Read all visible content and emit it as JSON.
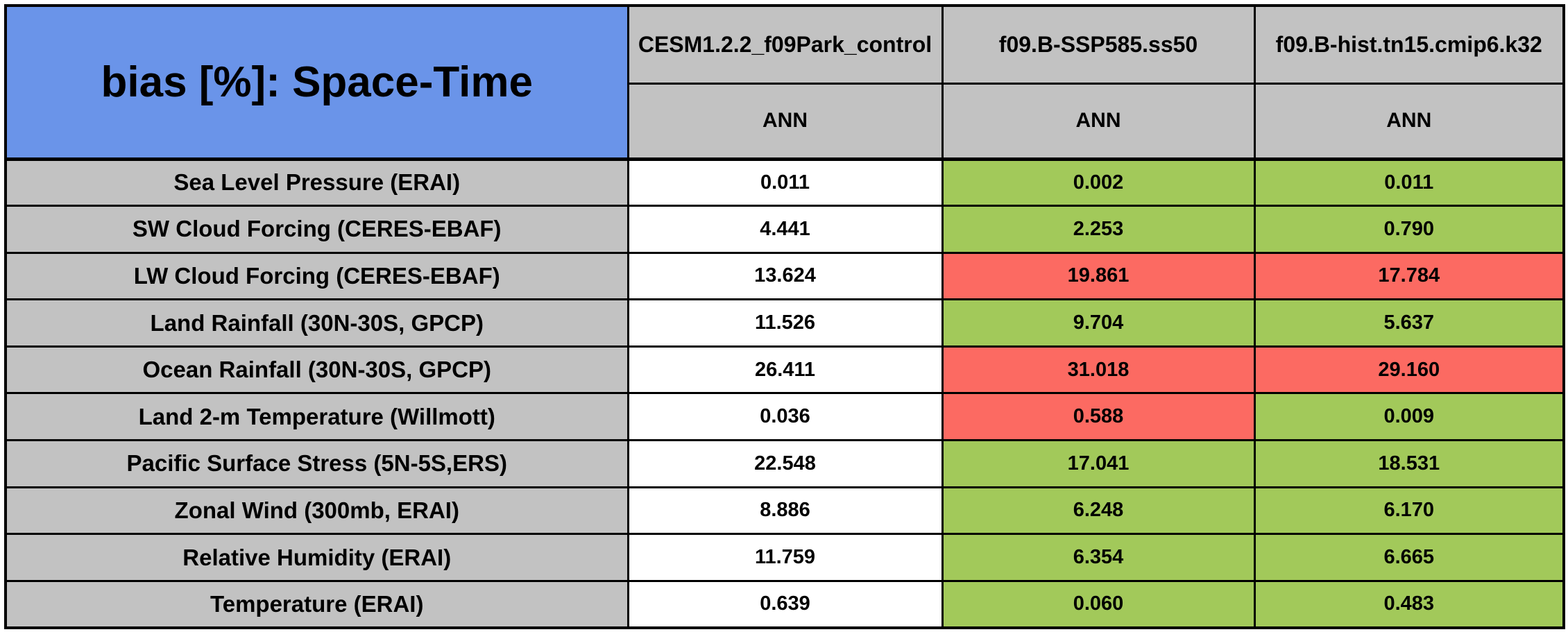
{
  "header": {
    "title": "bias [%]: Space-Time",
    "columns": [
      {
        "model": "CESM1.2.2_f09Park_control",
        "season": "ANN"
      },
      {
        "model": "f09.B-SSP585.ss50",
        "season": "ANN"
      },
      {
        "model": "f09.B-hist.tn15.cmip6.k32",
        "season": "ANN"
      }
    ]
  },
  "rows": [
    {
      "label": "Sea Level Pressure (ERAI)",
      "cells": [
        {
          "value": "0.011",
          "status": "white"
        },
        {
          "value": "0.002",
          "status": "green"
        },
        {
          "value": "0.011",
          "status": "green"
        }
      ]
    },
    {
      "label": "SW Cloud Forcing (CERES-EBAF)",
      "cells": [
        {
          "value": "4.441",
          "status": "white"
        },
        {
          "value": "2.253",
          "status": "green"
        },
        {
          "value": "0.790",
          "status": "green"
        }
      ]
    },
    {
      "label": "LW Cloud Forcing (CERES-EBAF)",
      "cells": [
        {
          "value": "13.624",
          "status": "white"
        },
        {
          "value": "19.861",
          "status": "red"
        },
        {
          "value": "17.784",
          "status": "red"
        }
      ]
    },
    {
      "label": "Land Rainfall (30N-30S, GPCP)",
      "cells": [
        {
          "value": "11.526",
          "status": "white"
        },
        {
          "value": "9.704",
          "status": "green"
        },
        {
          "value": "5.637",
          "status": "green"
        }
      ]
    },
    {
      "label": "Ocean Rainfall (30N-30S, GPCP)",
      "cells": [
        {
          "value": "26.411",
          "status": "white"
        },
        {
          "value": "31.018",
          "status": "red"
        },
        {
          "value": "29.160",
          "status": "red"
        }
      ]
    },
    {
      "label": "Land 2-m Temperature (Willmott)",
      "cells": [
        {
          "value": "0.036",
          "status": "white"
        },
        {
          "value": "0.588",
          "status": "red"
        },
        {
          "value": "0.009",
          "status": "green"
        }
      ]
    },
    {
      "label": "Pacific Surface Stress (5N-5S,ERS)",
      "cells": [
        {
          "value": "22.548",
          "status": "white"
        },
        {
          "value": "17.041",
          "status": "green"
        },
        {
          "value": "18.531",
          "status": "green"
        }
      ]
    },
    {
      "label": "Zonal Wind (300mb, ERAI)",
      "cells": [
        {
          "value": "8.886",
          "status": "white"
        },
        {
          "value": "6.248",
          "status": "green"
        },
        {
          "value": "6.170",
          "status": "green"
        }
      ]
    },
    {
      "label": "Relative Humidity (ERAI)",
      "cells": [
        {
          "value": "11.759",
          "status": "white"
        },
        {
          "value": "6.354",
          "status": "green"
        },
        {
          "value": "6.665",
          "status": "green"
        }
      ]
    },
    {
      "label": "Temperature (ERAI)",
      "cells": [
        {
          "value": "0.639",
          "status": "white"
        },
        {
          "value": "0.060",
          "status": "green"
        },
        {
          "value": "0.483",
          "status": "green"
        }
      ]
    }
  ],
  "colors": {
    "header_blue": "#6A94E9",
    "header_gray": "#C2C2C2",
    "good_green": "#A2C95A",
    "bad_red": "#FC6A62",
    "neutral_white": "#FFFFFF",
    "border_black": "#000000"
  },
  "chart_data": {
    "type": "table",
    "title": "bias [%]: Space-Time",
    "columns": [
      "CESM1.2.2_f09Park_control",
      "f09.B-SSP585.ss50",
      "f09.B-hist.tn15.cmip6.k32"
    ],
    "subcolumns": [
      "ANN",
      "ANN",
      "ANN"
    ],
    "row_labels": [
      "Sea Level Pressure (ERAI)",
      "SW Cloud Forcing (CERES-EBAF)",
      "LW Cloud Forcing (CERES-EBAF)",
      "Land Rainfall (30N-30S, GPCP)",
      "Ocean Rainfall (30N-30S, GPCP)",
      "Land 2-m Temperature (Willmott)",
      "Pacific Surface Stress (5N-5S,ERS)",
      "Zonal Wind (300mb, ERAI)",
      "Relative Humidity (ERAI)",
      "Temperature (ERAI)"
    ],
    "values": [
      [
        0.011,
        0.002,
        0.011
      ],
      [
        4.441,
        2.253,
        0.79
      ],
      [
        13.624,
        19.861,
        17.784
      ],
      [
        11.526,
        9.704,
        5.637
      ],
      [
        26.411,
        31.018,
        29.16
      ],
      [
        0.036,
        0.588,
        0.009
      ],
      [
        22.548,
        17.041,
        18.531
      ],
      [
        8.886,
        6.248,
        6.17
      ],
      [
        11.759,
        6.354,
        6.665
      ],
      [
        0.639,
        0.06,
        0.483
      ]
    ],
    "cell_colors": [
      [
        "white",
        "green",
        "green"
      ],
      [
        "white",
        "green",
        "green"
      ],
      [
        "white",
        "red",
        "red"
      ],
      [
        "white",
        "green",
        "green"
      ],
      [
        "white",
        "red",
        "red"
      ],
      [
        "white",
        "red",
        "green"
      ],
      [
        "white",
        "green",
        "green"
      ],
      [
        "white",
        "green",
        "green"
      ],
      [
        "white",
        "green",
        "green"
      ],
      [
        "white",
        "green",
        "green"
      ]
    ],
    "layout": {
      "grid": true,
      "header_fill": "gray",
      "title_fill": "blue"
    }
  }
}
